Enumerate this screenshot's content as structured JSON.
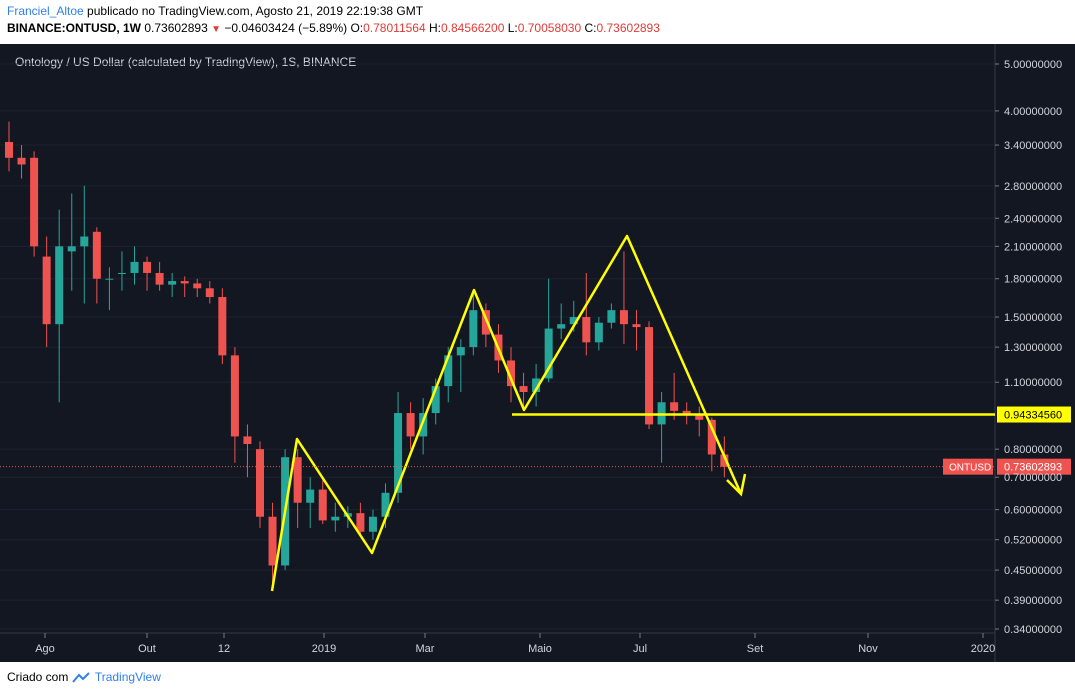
{
  "header": {
    "author": "Franciel_Altoe",
    "published_text": " publicado no TradingView.com, Agosto 21, 2019 22:19:38 GMT",
    "symbol": "BINANCE:ONTUSD, 1W",
    "last": "0.73602893",
    "change": "−0.04603424 (−5.89%)",
    "o_label": "O:",
    "o_value": "0.78011564",
    "h_label": "H:",
    "h_value": "0.84566200",
    "l_label": "L:",
    "l_value": "0.70058030",
    "c_label": "C:",
    "c_value": "0.73602893"
  },
  "footer": {
    "created_by": "Criado com",
    "brand": "TradingView"
  },
  "colors": {
    "background": "#131722",
    "up": "#26a69a",
    "down": "#ef5350",
    "annotation": "#ffff00",
    "price_tag": "#ef5350",
    "grid": "#1e2230"
  },
  "chart_data": {
    "type": "candlestick",
    "title": "Ontology / US Dollar (calculated by TradingView), 1S, BINANCE",
    "scale": "log",
    "y_ticks": [
      "5.00000000",
      "4.00000000",
      "3.40000000",
      "2.80000000",
      "2.40000000",
      "2.10000000",
      "1.80000000",
      "1.50000000",
      "1.30000000",
      "1.10000000",
      "0.94334560",
      "0.80000000",
      "0.73602893",
      "0.70000000",
      "0.60000000",
      "0.52000000",
      "0.45000000",
      "0.39000000",
      "0.34000000"
    ],
    "y_tick_values": [
      5.0,
      4.0,
      3.4,
      2.8,
      2.4,
      2.1,
      1.8,
      1.5,
      1.3,
      1.1,
      0.9433456,
      0.8,
      0.73602893,
      0.7,
      0.6,
      0.52,
      0.45,
      0.39,
      0.34
    ],
    "x_labels": [
      "Ago",
      "Out",
      "12",
      "2019",
      "Mar",
      "Maio",
      "Jul",
      "Set",
      "Nov",
      "2020"
    ],
    "ylim": [
      0.34,
      5.6
    ],
    "candles": [
      {
        "o": 3.45,
        "h": 3.8,
        "l": 3.0,
        "c": 3.2
      },
      {
        "o": 3.2,
        "h": 3.4,
        "l": 2.9,
        "c": 3.1
      },
      {
        "o": 3.2,
        "h": 3.3,
        "l": 2.0,
        "c": 2.1
      },
      {
        "o": 2.0,
        "h": 2.2,
        "l": 1.3,
        "c": 1.45
      },
      {
        "o": 1.45,
        "h": 2.5,
        "l": 1.0,
        "c": 2.1
      },
      {
        "o": 2.05,
        "h": 2.7,
        "l": 1.7,
        "c": 2.1
      },
      {
        "o": 2.1,
        "h": 2.8,
        "l": 1.6,
        "c": 2.2
      },
      {
        "o": 2.25,
        "h": 2.3,
        "l": 1.6,
        "c": 1.8
      },
      {
        "o": 1.8,
        "h": 1.9,
        "l": 1.55,
        "c": 1.8
      },
      {
        "o": 1.85,
        "h": 2.05,
        "l": 1.7,
        "c": 1.85
      },
      {
        "o": 1.85,
        "h": 2.1,
        "l": 1.75,
        "c": 1.95
      },
      {
        "o": 1.95,
        "h": 2.0,
        "l": 1.7,
        "c": 1.85
      },
      {
        "o": 1.85,
        "h": 1.95,
        "l": 1.7,
        "c": 1.75
      },
      {
        "o": 1.75,
        "h": 1.85,
        "l": 1.65,
        "c": 1.78
      },
      {
        "o": 1.78,
        "h": 1.82,
        "l": 1.65,
        "c": 1.76
      },
      {
        "o": 1.76,
        "h": 1.8,
        "l": 1.65,
        "c": 1.72
      },
      {
        "o": 1.72,
        "h": 1.78,
        "l": 1.6,
        "c": 1.65
      },
      {
        "o": 1.65,
        "h": 1.72,
        "l": 1.2,
        "c": 1.25
      },
      {
        "o": 1.25,
        "h": 1.3,
        "l": 0.75,
        "c": 0.85
      },
      {
        "o": 0.85,
        "h": 0.9,
        "l": 0.7,
        "c": 0.82
      },
      {
        "o": 0.8,
        "h": 0.83,
        "l": 0.55,
        "c": 0.58
      },
      {
        "o": 0.58,
        "h": 0.62,
        "l": 0.42,
        "c": 0.46
      },
      {
        "o": 0.46,
        "h": 0.8,
        "l": 0.45,
        "c": 0.77
      },
      {
        "o": 0.77,
        "h": 0.8,
        "l": 0.55,
        "c": 0.62
      },
      {
        "o": 0.62,
        "h": 0.7,
        "l": 0.55,
        "c": 0.66
      },
      {
        "o": 0.66,
        "h": 0.69,
        "l": 0.56,
        "c": 0.57
      },
      {
        "o": 0.57,
        "h": 0.62,
        "l": 0.54,
        "c": 0.58
      },
      {
        "o": 0.58,
        "h": 0.61,
        "l": 0.55,
        "c": 0.59
      },
      {
        "o": 0.59,
        "h": 0.62,
        "l": 0.53,
        "c": 0.54
      },
      {
        "o": 0.54,
        "h": 0.6,
        "l": 0.52,
        "c": 0.58
      },
      {
        "o": 0.58,
        "h": 0.68,
        "l": 0.55,
        "c": 0.65
      },
      {
        "o": 0.65,
        "h": 1.05,
        "l": 0.62,
        "c": 0.95
      },
      {
        "o": 0.95,
        "h": 1.0,
        "l": 0.8,
        "c": 0.85
      },
      {
        "o": 0.85,
        "h": 1.02,
        "l": 0.78,
        "c": 0.95
      },
      {
        "o": 0.95,
        "h": 1.12,
        "l": 0.9,
        "c": 1.08
      },
      {
        "o": 1.08,
        "h": 1.3,
        "l": 1.0,
        "c": 1.25
      },
      {
        "o": 1.25,
        "h": 1.35,
        "l": 1.05,
        "c": 1.3
      },
      {
        "o": 1.3,
        "h": 1.7,
        "l": 1.25,
        "c": 1.55
      },
      {
        "o": 1.55,
        "h": 1.6,
        "l": 1.3,
        "c": 1.38
      },
      {
        "o": 1.38,
        "h": 1.45,
        "l": 1.15,
        "c": 1.22
      },
      {
        "o": 1.22,
        "h": 1.3,
        "l": 1.0,
        "c": 1.08
      },
      {
        "o": 1.08,
        "h": 1.15,
        "l": 0.98,
        "c": 1.05
      },
      {
        "o": 1.05,
        "h": 1.2,
        "l": 0.98,
        "c": 1.12
      },
      {
        "o": 1.12,
        "h": 1.8,
        "l": 1.1,
        "c": 1.42
      },
      {
        "o": 1.42,
        "h": 1.6,
        "l": 1.35,
        "c": 1.45
      },
      {
        "o": 1.45,
        "h": 1.62,
        "l": 1.4,
        "c": 1.5
      },
      {
        "o": 1.5,
        "h": 1.85,
        "l": 1.25,
        "c": 1.33
      },
      {
        "o": 1.33,
        "h": 1.5,
        "l": 1.28,
        "c": 1.46
      },
      {
        "o": 1.46,
        "h": 1.6,
        "l": 1.42,
        "c": 1.55
      },
      {
        "o": 1.55,
        "h": 2.05,
        "l": 1.32,
        "c": 1.45
      },
      {
        "o": 1.45,
        "h": 1.55,
        "l": 1.28,
        "c": 1.43
      },
      {
        "o": 1.43,
        "h": 1.47,
        "l": 0.88,
        "c": 0.9
      },
      {
        "o": 0.9,
        "h": 1.05,
        "l": 0.75,
        "c": 1.0
      },
      {
        "o": 1.0,
        "h": 1.15,
        "l": 0.92,
        "c": 0.96
      },
      {
        "o": 0.96,
        "h": 1.0,
        "l": 0.9,
        "c": 0.94
      },
      {
        "o": 0.94,
        "h": 0.98,
        "l": 0.85,
        "c": 0.92
      },
      {
        "o": 0.92,
        "h": 0.93,
        "l": 0.72,
        "c": 0.78
      },
      {
        "o": 0.78,
        "h": 0.85,
        "l": 0.7,
        "c": 0.736
      }
    ],
    "annotations": {
      "zigzag_1": [
        [
          0.41,
          "b"
        ],
        [
          0.85,
          "p"
        ],
        [
          0.49,
          "v"
        ],
        [
          1.75,
          "p2"
        ],
        [
          0.96,
          "v2"
        ],
        [
          2.15,
          "p3"
        ],
        [
          0.7,
          "end"
        ]
      ],
      "support_level": 0.9433456,
      "support_label": "0.94334560",
      "last_price_label": "ONTUSD",
      "last_price": "0.73602893"
    }
  }
}
